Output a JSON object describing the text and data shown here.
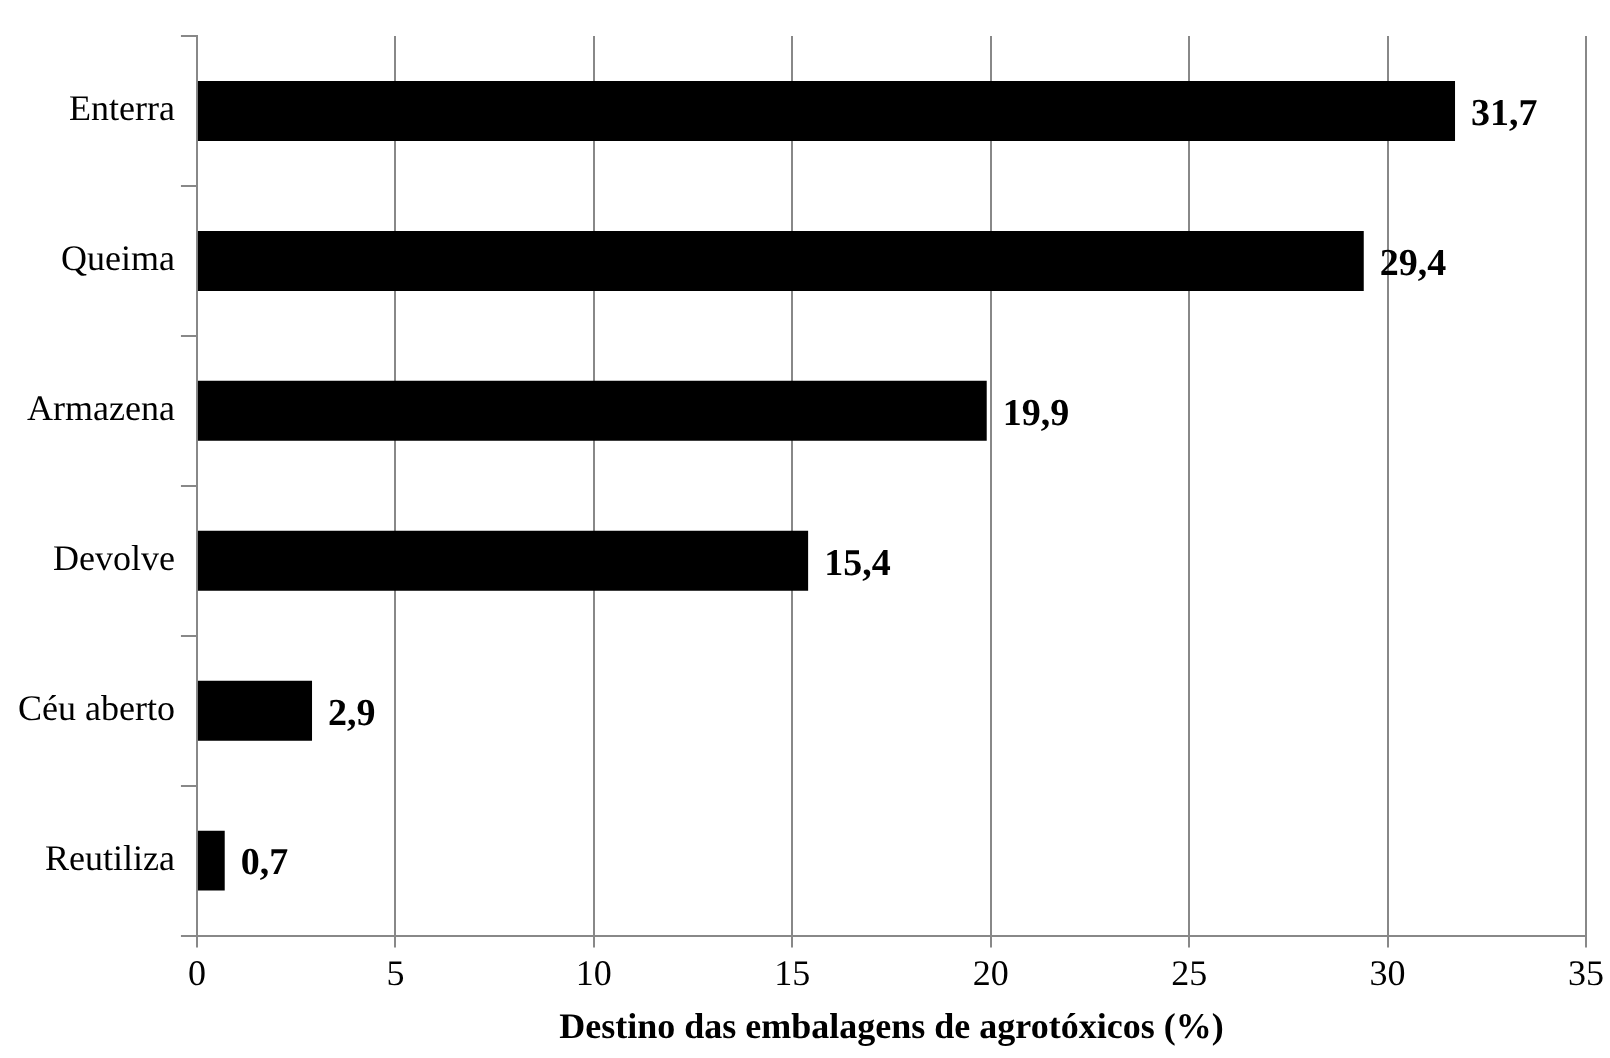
{
  "chart_data": {
    "type": "bar",
    "orientation": "horizontal",
    "xlabel": "Destino das embalagens de agrotóxicos (%)",
    "categories": [
      "Enterra",
      "Queima",
      "Armazena",
      "Devolve",
      "Céu aberto",
      "Reutiliza"
    ],
    "values": [
      31.7,
      29.4,
      19.9,
      15.4,
      2.9,
      0.7
    ],
    "value_labels": [
      "31,7",
      "29,4",
      "19,9",
      "15,4",
      "2,9",
      "0,7"
    ],
    "color": "#000000",
    "xlim": [
      0,
      35
    ],
    "xticks": [
      0,
      5,
      10,
      15,
      20,
      25,
      30,
      35
    ],
    "grid": "x",
    "legend": false
  }
}
